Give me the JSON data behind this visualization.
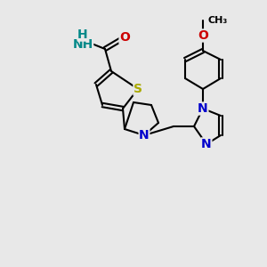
{
  "bg_color": "#e8e8e8",
  "atom_colors": {
    "C": "#000000",
    "N": "#0000cc",
    "O": "#cc0000",
    "S": "#aaaa00",
    "NH": "#008888"
  },
  "bond_color": "#000000",
  "bond_width": 1.5,
  "font_size_atom": 10,
  "font_size_small": 9
}
